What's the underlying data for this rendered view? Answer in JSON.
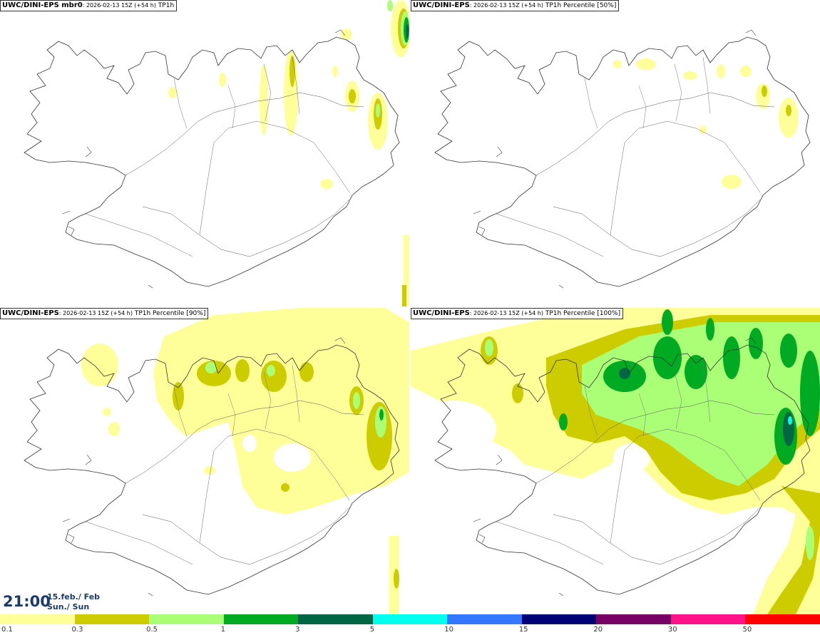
{
  "panels": [
    {
      "source": "UWC/DINI-EPS mbr0",
      "run": ": 2026-02-13 15Z (+54 h)",
      "field": " TP1h"
    },
    {
      "source": "UWC/DINI-EPS",
      "run": ": 2026-02-13 15Z (+54 h)",
      "field": " TP1h Percentile [50%]"
    },
    {
      "source": "UWC/DINI-EPS",
      "run": ": 2026-02-13 15Z (+54 h)",
      "field": " TP1h Percentile [90%]"
    },
    {
      "source": "UWC/DINI-EPS",
      "run": ": 2026-02-13 15Z (+54 h)",
      "field": " TP1h Percentile [100%]"
    }
  ],
  "valid_time": {
    "time": "21:00",
    "date_line1": "15.feb./ Feb",
    "date_line2": "Sun./ Sun"
  },
  "legend": {
    "labels": [
      "0.1",
      "0.3",
      "0.5",
      "1",
      "3",
      "5",
      "10",
      "15",
      "20",
      "30",
      "50"
    ],
    "colors": [
      "#ffff99",
      "#cccc00",
      "#aaff77",
      "#00aa22",
      "#006644",
      "#00ffee",
      "#3377ff",
      "#000077",
      "#770066",
      "#ff1188",
      "#ff0000"
    ]
  },
  "colors": {
    "map_outline": "#333333",
    "light_yellow": "#ffff99",
    "olive": "#cccc00",
    "light_green": "#aaff77",
    "green": "#00aa22",
    "dark_green": "#006644",
    "cyan": "#00ffee"
  }
}
